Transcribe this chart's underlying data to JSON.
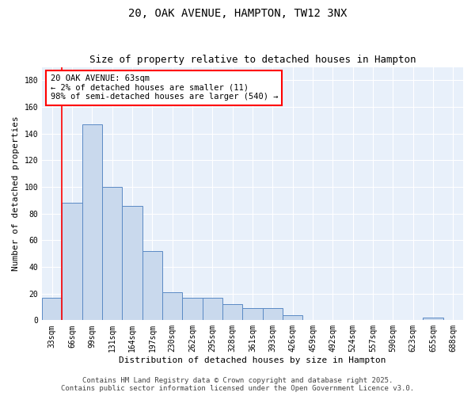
{
  "title": "20, OAK AVENUE, HAMPTON, TW12 3NX",
  "subtitle": "Size of property relative to detached houses in Hampton",
  "xlabel": "Distribution of detached houses by size in Hampton",
  "ylabel": "Number of detached properties",
  "bar_color": "#c9d9ed",
  "bar_edge_color": "#5b8ac5",
  "bg_color": "#e8f0fa",
  "grid_color": "white",
  "categories": [
    "33sqm",
    "66sqm",
    "99sqm",
    "131sqm",
    "164sqm",
    "197sqm",
    "230sqm",
    "262sqm",
    "295sqm",
    "328sqm",
    "361sqm",
    "393sqm",
    "426sqm",
    "459sqm",
    "492sqm",
    "524sqm",
    "557sqm",
    "590sqm",
    "623sqm",
    "655sqm",
    "688sqm"
  ],
  "values": [
    17,
    88,
    147,
    100,
    86,
    52,
    21,
    17,
    17,
    12,
    9,
    9,
    4,
    0,
    0,
    0,
    0,
    0,
    0,
    2,
    0
  ],
  "red_line_x": 0.5,
  "annotation_text": "20 OAK AVENUE: 63sqm\n← 2% of detached houses are smaller (11)\n98% of semi-detached houses are larger (540) →",
  "annotation_box_color": "white",
  "annotation_border_color": "red",
  "red_line_color": "red",
  "yticks": [
    0,
    20,
    40,
    60,
    80,
    100,
    120,
    140,
    160,
    180
  ],
  "ylim": [
    0,
    190
  ],
  "footer_line1": "Contains HM Land Registry data © Crown copyright and database right 2025.",
  "footer_line2": "Contains public sector information licensed under the Open Government Licence v3.0.",
  "title_fontsize": 10,
  "subtitle_fontsize": 9,
  "xlabel_fontsize": 8,
  "ylabel_fontsize": 8,
  "tick_fontsize": 7,
  "footer_fontsize": 6.5,
  "annotation_fontsize": 7.5
}
